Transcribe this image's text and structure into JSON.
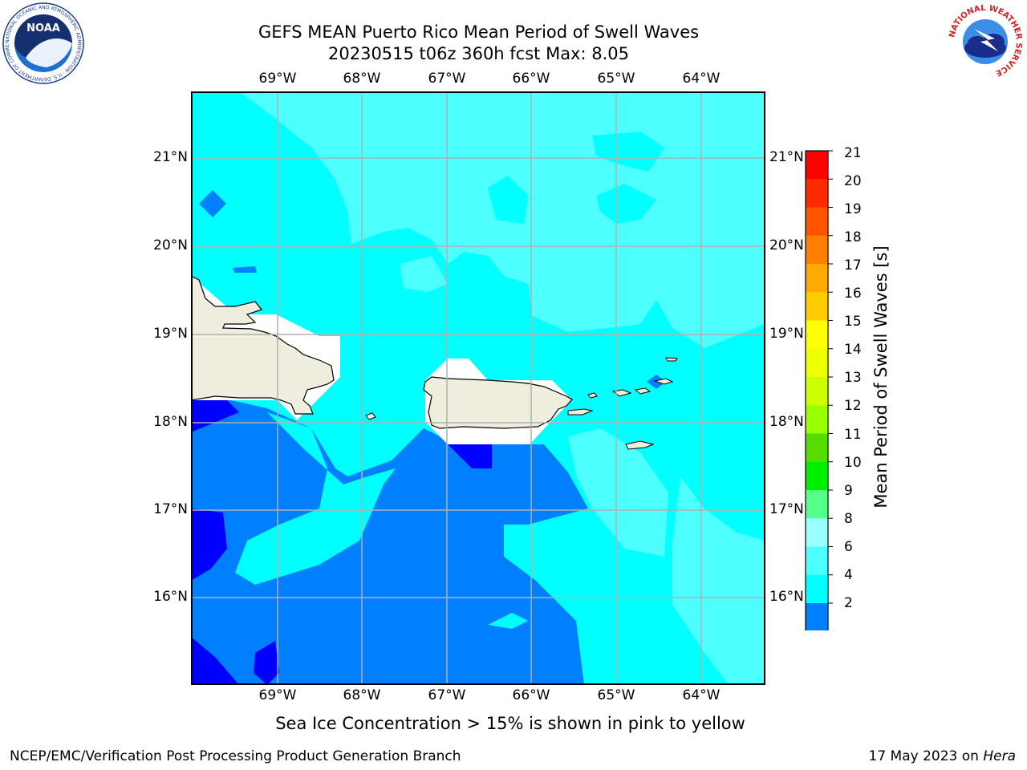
{
  "header": {
    "title_line1": "GEFS MEAN Puerto Rico Mean Period of Swell Waves",
    "title_line2": "20230515 t06z 360h fcst   Max: 8.05"
  },
  "map": {
    "lon_labels": [
      "69°W",
      "68°W",
      "67°W",
      "66°W",
      "65°W",
      "64°W"
    ],
    "lat_labels": [
      "21°N",
      "20°N",
      "19°N",
      "18°N",
      "17°N",
      "16°N"
    ],
    "extent": {
      "lon_min": -70.0,
      "lon_max": -63.25,
      "lat_min": 15.0,
      "lat_max": 21.75
    },
    "land_color": "#efedde",
    "palette": {
      "band_2_4": "#0080ff",
      "band_4_6": "#00ffff",
      "band_6_8": "#4dffff",
      "below_2": "#0000ff",
      "no_data": "#ffffff"
    }
  },
  "colorbar": {
    "label": "Mean Period of Swell Waves [s]",
    "ticks": [
      "21",
      "20",
      "19",
      "18",
      "17",
      "16",
      "15",
      "14",
      "13",
      "12",
      "11",
      "10",
      "9",
      "8",
      "6",
      "4",
      "2"
    ],
    "colors": [
      "#ff0000",
      "#ff2a00",
      "#ff5500",
      "#ff8000",
      "#ffaa00",
      "#ffcc00",
      "#ffff00",
      "#eeff00",
      "#ccff00",
      "#99ff00",
      "#55dd00",
      "#00ee00",
      "#55ff88",
      "#99ffff",
      "#4dffff",
      "#00ffff",
      "#0080ff"
    ],
    "under_color": "#0000ff"
  },
  "logos": {
    "noaa_text": "NOAA",
    "noaa_ring": "NATIONAL OCEANIC AND ATMOSPHERIC ADMINISTRATION · U.S. DEPARTMENT OF COMMERCE",
    "nws_ring": "NATIONAL WEATHER SERVICE"
  },
  "footer": {
    "note": "Sea Ice Concentration > 15% is shown in pink to yellow",
    "branch": "NCEP/EMC/Verification Post Processing Product Generation Branch",
    "date": "17 May 2023 on",
    "machine": "Hera"
  }
}
